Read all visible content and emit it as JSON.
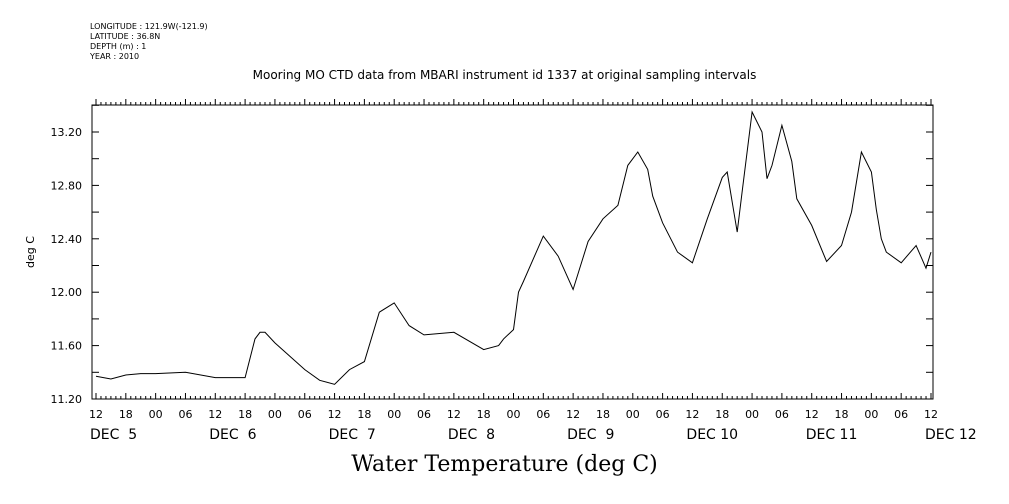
{
  "meta": {
    "longitude": "LONGITUDE : 121.9W(-121.9)",
    "latitude": "LATITUDE : 36.8N",
    "depth": "DEPTH (m) : 1",
    "year": "YEAR : 2010"
  },
  "chart_data": {
    "type": "line",
    "title": "Mooring MO CTD data from MBARI instrument id 1337 at original sampling intervals",
    "xlabel": "Water Temperature (deg C)",
    "ylabel": "deg C",
    "ylim": [
      11.2,
      13.4
    ],
    "xlim": [
      "2010-12-05T12:00",
      "2010-12-12T12:00"
    ],
    "grid": false,
    "y_ticks": [
      "11.20",
      "11.60",
      "12.00",
      "12.40",
      "12.80",
      "13.20"
    ],
    "x_hour_ticks": [
      "12",
      "18",
      "00",
      "06",
      "12",
      "18",
      "00",
      "06",
      "12",
      "18",
      "00",
      "06",
      "12",
      "18",
      "00",
      "06",
      "12",
      "18",
      "00",
      "06",
      "12",
      "18",
      "00",
      "06",
      "12",
      "18",
      "00",
      "06",
      "12"
    ],
    "x_day_labels": [
      {
        "label": "DEC  5",
        "at": "2010-12-05T12:00"
      },
      {
        "label": "DEC  6",
        "at": "2010-12-06T12:00"
      },
      {
        "label": "DEC  7",
        "at": "2010-12-07T12:00"
      },
      {
        "label": "DEC  8",
        "at": "2010-12-08T12:00"
      },
      {
        "label": "DEC  9",
        "at": "2010-12-09T12:00"
      },
      {
        "label": "DEC 10",
        "at": "2010-12-10T12:00"
      },
      {
        "label": "DEC 11",
        "at": "2010-12-11T12:00"
      },
      {
        "label": "DEC 12",
        "at": "2010-12-12T12:00"
      }
    ],
    "series": [
      {
        "x": [
          "2010-12-05T12:00",
          "2010-12-05T15:00",
          "2010-12-05T18:00",
          "2010-12-05T21:00",
          "2010-12-06T00:00",
          "2010-12-06T06:00",
          "2010-12-06T12:00",
          "2010-12-06T18:00",
          "2010-12-06T20:00",
          "2010-12-06T21:00",
          "2010-12-06T22:00",
          "2010-12-07T00:00",
          "2010-12-07T06:00",
          "2010-12-07T09:00",
          "2010-12-07T12:00",
          "2010-12-07T15:00",
          "2010-12-07T18:00",
          "2010-12-07T21:00",
          "2010-12-08T00:00",
          "2010-12-08T03:00",
          "2010-12-08T06:00",
          "2010-12-08T12:00",
          "2010-12-08T18:00",
          "2010-12-08T21:00",
          "2010-12-08T22:00",
          "2010-12-09T00:00",
          "2010-12-09T01:00",
          "2010-12-09T02:00",
          "2010-12-09T06:00",
          "2010-12-09T09:00",
          "2010-12-09T12:00",
          "2010-12-09T15:00",
          "2010-12-09T18:00",
          "2010-12-09T21:00",
          "2010-12-09T23:00",
          "2010-12-10T01:00",
          "2010-12-10T03:00",
          "2010-12-10T04:00",
          "2010-12-10T06:00",
          "2010-12-10T09:00",
          "2010-12-10T12:00",
          "2010-12-10T15:00",
          "2010-12-10T18:00",
          "2010-12-10T19:00",
          "2010-12-10T21:00",
          "2010-12-10T22:00",
          "2010-12-11T00:00",
          "2010-12-11T02:00",
          "2010-12-11T03:00",
          "2010-12-11T04:00",
          "2010-12-11T06:00",
          "2010-12-11T08:00",
          "2010-12-11T09:00",
          "2010-12-11T12:00",
          "2010-12-11T15:00",
          "2010-12-11T18:00",
          "2010-12-11T20:00",
          "2010-12-11T22:00",
          "2010-12-12T00:00",
          "2010-12-12T01:00",
          "2010-12-12T02:00",
          "2010-12-12T03:00",
          "2010-12-12T06:00",
          "2010-12-12T09:00",
          "2010-12-12T11:00",
          "2010-12-12T12:00"
        ],
        "y": [
          11.37,
          11.35,
          11.38,
          11.39,
          11.39,
          11.4,
          11.36,
          11.36,
          11.65,
          11.7,
          11.7,
          11.62,
          11.42,
          11.34,
          11.31,
          11.42,
          11.48,
          11.85,
          11.92,
          11.75,
          11.68,
          11.7,
          11.57,
          11.6,
          11.65,
          11.72,
          12.0,
          12.08,
          12.42,
          12.27,
          12.02,
          12.38,
          12.55,
          12.65,
          12.95,
          13.05,
          12.92,
          12.72,
          12.52,
          12.3,
          12.22,
          12.55,
          12.86,
          12.9,
          12.45,
          12.75,
          13.35,
          13.2,
          12.85,
          12.95,
          13.25,
          12.98,
          12.7,
          12.5,
          12.23,
          12.35,
          12.6,
          13.05,
          12.9,
          12.62,
          12.4,
          12.3,
          12.22,
          12.35,
          12.18,
          12.3
        ]
      }
    ]
  }
}
